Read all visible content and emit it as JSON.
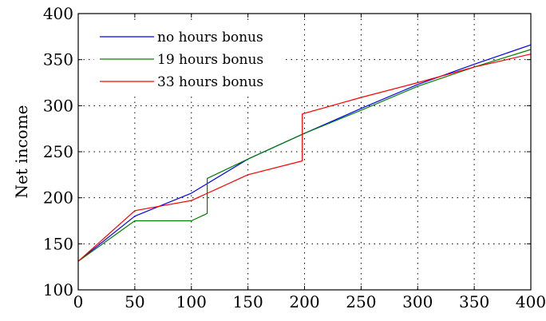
{
  "chart_data": {
    "type": "line",
    "title": "",
    "xlabel": "",
    "ylabel": "Net income",
    "xlim": [
      0,
      400
    ],
    "ylim": [
      100,
      400
    ],
    "xticks": [
      0,
      50,
      100,
      150,
      200,
      250,
      300,
      350,
      400
    ],
    "yticks": [
      100,
      150,
      200,
      250,
      300,
      350,
      400
    ],
    "grid": true,
    "legend_position": "top-left",
    "series": [
      {
        "name": "no hours bonus",
        "color": "#0000ff",
        "x": [
          0,
          50,
          100,
          150,
          200,
          250,
          300,
          350,
          400
        ],
        "y": [
          131,
          180,
          205,
          242,
          270,
          297,
          323,
          345,
          366
        ]
      },
      {
        "name": "19 hours bonus",
        "color": "#008000",
        "x": [
          0,
          50,
          100,
          114,
          114,
          150,
          200,
          250,
          300,
          350,
          400
        ],
        "y": [
          131,
          175,
          175,
          183,
          221,
          242,
          270,
          295,
          321,
          342,
          361
        ]
      },
      {
        "name": "33 hours bonus",
        "color": "#ff0000",
        "x": [
          0,
          50,
          100,
          150,
          198,
          198,
          250,
          300,
          350,
          400
        ],
        "y": [
          131,
          186,
          197,
          225,
          240,
          291,
          309,
          325,
          342,
          356
        ]
      }
    ]
  }
}
